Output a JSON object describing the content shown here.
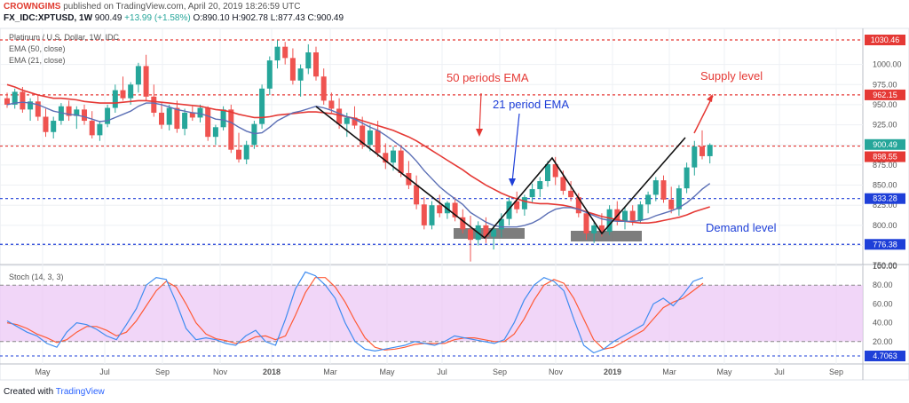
{
  "header": {
    "brand": "CROWNGIMS",
    "published": "published on TradingView.com, April 20, 2019 18:26:59 UTC",
    "symbol": "FX_IDC:XPTUSD, 1W",
    "last": "900.49",
    "change": "+13.99 (+1.58%)",
    "ohlc": "O:890.10 H:902.78 L:877.43 C:900.49"
  },
  "legend": {
    "title": "Platinum / U.S. Dollar, 1W, IDC",
    "ema50": "EMA (50, close)",
    "ema21": "EMA (21, close)",
    "stoch": "Stoch (14, 3, 3)"
  },
  "annotations": {
    "ema50_label": "50 periods EMA",
    "ema21_label": "21 period EMA",
    "supply_label": "Supply level",
    "demand_label": "Demand level"
  },
  "footer": {
    "created_with": "Created with",
    "tv": "TradingView"
  },
  "colors": {
    "up": "#26a69a",
    "down": "#ef5350",
    "ema50": "#e53935",
    "ema21": "#5b6fb5",
    "support": "#1e3fd8",
    "resistance": "#e53935",
    "stoch_k": "#3f8cf0",
    "stoch_d": "#ff5a36",
    "stoch_band": "#ecc8f5"
  },
  "chart_data": {
    "type": "candlestick",
    "price_axis_ticks": [
      750,
      775,
      800,
      825,
      850,
      875,
      900,
      925,
      950,
      975,
      1000
    ],
    "time_ticks": [
      "May",
      "Jul",
      "Sep",
      "Nov",
      "2018",
      "Mar",
      "May",
      "Jul",
      "Sep",
      "Nov",
      "2019",
      "Mar",
      "May",
      "Jul",
      "Sep"
    ],
    "levels": [
      {
        "value": 1030.46,
        "label": "1030.46",
        "color": "#e53935"
      },
      {
        "value": 962.15,
        "label": "962.15",
        "color": "#e53935"
      },
      {
        "value": 900.49,
        "label": "900.49",
        "color": "#26a69a",
        "dashed": false
      },
      {
        "value": 898.55,
        "label": "898.55",
        "color": "#e53935"
      },
      {
        "value": 833.28,
        "label": "833.28",
        "color": "#1e3fd8"
      },
      {
        "value": 776.38,
        "label": "776.38",
        "color": "#1e3fd8"
      }
    ],
    "candles": [
      [
        958,
        965,
        946,
        950
      ],
      [
        950,
        970,
        945,
        966
      ],
      [
        966,
        972,
        940,
        944
      ],
      [
        944,
        958,
        930,
        954
      ],
      [
        954,
        962,
        930,
        935
      ],
      [
        935,
        945,
        910,
        916
      ],
      [
        916,
        935,
        908,
        930
      ],
      [
        930,
        952,
        925,
        948
      ],
      [
        948,
        955,
        930,
        936
      ],
      [
        936,
        948,
        920,
        944
      ],
      [
        944,
        950,
        925,
        930
      ],
      [
        930,
        942,
        908,
        912
      ],
      [
        912,
        930,
        905,
        926
      ],
      [
        926,
        950,
        922,
        946
      ],
      [
        946,
        975,
        940,
        968
      ],
      [
        968,
        985,
        955,
        958
      ],
      [
        958,
        978,
        950,
        975
      ],
      [
        975,
        1002,
        965,
        998
      ],
      [
        998,
        1012,
        955,
        960
      ],
      [
        960,
        975,
        935,
        940
      ],
      [
        940,
        952,
        920,
        925
      ],
      [
        925,
        950,
        918,
        946
      ],
      [
        946,
        955,
        915,
        920
      ],
      [
        920,
        945,
        912,
        940
      ],
      [
        940,
        948,
        930,
        934
      ],
      [
        934,
        950,
        928,
        946
      ],
      [
        946,
        948,
        905,
        910
      ],
      [
        910,
        925,
        900,
        922
      ],
      [
        922,
        948,
        918,
        944
      ],
      [
        944,
        950,
        890,
        894
      ],
      [
        894,
        915,
        878,
        882
      ],
      [
        882,
        905,
        876,
        900
      ],
      [
        900,
        930,
        895,
        926
      ],
      [
        926,
        975,
        920,
        970
      ],
      [
        970,
        1010,
        962,
        1005
      ],
      [
        1005,
        1030,
        995,
        1022
      ],
      [
        1022,
        1028,
        1000,
        1008
      ],
      [
        1008,
        1020,
        975,
        980
      ],
      [
        980,
        1000,
        960,
        995
      ],
      [
        995,
        1025,
        988,
        1015
      ],
      [
        1015,
        1022,
        980,
        985
      ],
      [
        985,
        995,
        950,
        955
      ],
      [
        955,
        965,
        940,
        945
      ],
      [
        945,
        958,
        920,
        926
      ],
      [
        926,
        940,
        910,
        934
      ],
      [
        934,
        948,
        920,
        924
      ],
      [
        924,
        935,
        895,
        900
      ],
      [
        900,
        925,
        892,
        918
      ],
      [
        918,
        930,
        885,
        890
      ],
      [
        890,
        902,
        870,
        878
      ],
      [
        878,
        898,
        868,
        893
      ],
      [
        893,
        900,
        860,
        865
      ],
      [
        865,
        880,
        845,
        850
      ],
      [
        850,
        862,
        820,
        826
      ],
      [
        826,
        835,
        795,
        800
      ],
      [
        800,
        830,
        795,
        825
      ],
      [
        825,
        838,
        810,
        815
      ],
      [
        815,
        830,
        808,
        828
      ],
      [
        828,
        835,
        805,
        810
      ],
      [
        810,
        820,
        790,
        795
      ],
      [
        795,
        812,
        755,
        782
      ],
      [
        782,
        805,
        775,
        800
      ],
      [
        800,
        810,
        778,
        786
      ],
      [
        786,
        800,
        770,
        795
      ],
      [
        795,
        815,
        785,
        808
      ],
      [
        808,
        835,
        800,
        830
      ],
      [
        830,
        842,
        815,
        820
      ],
      [
        820,
        838,
        812,
        835
      ],
      [
        835,
        852,
        828,
        845
      ],
      [
        845,
        860,
        835,
        855
      ],
      [
        855,
        880,
        848,
        876
      ],
      [
        876,
        885,
        850,
        860
      ],
      [
        860,
        868,
        838,
        843
      ],
      [
        843,
        855,
        830,
        835
      ],
      [
        835,
        840,
        810,
        815
      ],
      [
        815,
        818,
        782,
        790
      ],
      [
        790,
        805,
        778,
        800
      ],
      [
        800,
        815,
        786,
        792
      ],
      [
        792,
        825,
        788,
        820
      ],
      [
        820,
        830,
        800,
        805
      ],
      [
        805,
        822,
        795,
        818
      ],
      [
        818,
        825,
        800,
        806
      ],
      [
        806,
        830,
        802,
        826
      ],
      [
        826,
        842,
        815,
        838
      ],
      [
        838,
        860,
        830,
        856
      ],
      [
        856,
        862,
        828,
        832
      ],
      [
        832,
        848,
        815,
        820
      ],
      [
        820,
        850,
        812,
        846
      ],
      [
        846,
        878,
        840,
        872
      ],
      [
        872,
        905,
        862,
        898
      ],
      [
        898,
        918,
        882,
        886
      ],
      [
        886,
        902,
        877,
        900
      ]
    ],
    "ema50": [
      975,
      972,
      968,
      965,
      962,
      960,
      958,
      958,
      957,
      956,
      954,
      953,
      952,
      952,
      952,
      953,
      954,
      955,
      955,
      954,
      953,
      952,
      951,
      950,
      949,
      948,
      946,
      944,
      943,
      941,
      938,
      936,
      934,
      934,
      935,
      937,
      938,
      939,
      940,
      941,
      941,
      940,
      939,
      937,
      935,
      933,
      930,
      927,
      924,
      921,
      918,
      914,
      910,
      905,
      899,
      893,
      887,
      881,
      875,
      869,
      862,
      856,
      850,
      845,
      840,
      836,
      833,
      830,
      828,
      827,
      827,
      826,
      825,
      823,
      820,
      817,
      814,
      811,
      809,
      807,
      805,
      804,
      803,
      803,
      804,
      806,
      808,
      810,
      813,
      817,
      820,
      823
    ],
    "ema21": [
      950,
      952,
      953,
      952,
      950,
      946,
      942,
      940,
      938,
      937,
      935,
      932,
      929,
      930,
      934,
      938,
      942,
      948,
      952,
      952,
      950,
      947,
      944,
      942,
      940,
      939,
      936,
      932,
      931,
      928,
      922,
      917,
      914,
      915,
      922,
      930,
      935,
      940,
      942,
      945,
      948,
      946,
      943,
      939,
      935,
      932,
      927,
      922,
      918,
      912,
      905,
      898,
      890,
      880,
      868,
      858,
      848,
      840,
      833,
      826,
      816,
      810,
      804,
      800,
      798,
      798,
      798,
      800,
      803,
      808,
      815,
      820,
      822,
      822,
      820,
      816,
      812,
      808,
      806,
      805,
      805,
      805,
      806,
      808,
      812,
      815,
      818,
      822,
      828,
      836,
      845,
      852
    ],
    "stoch_k": [
      42,
      36,
      30,
      26,
      18,
      14,
      30,
      40,
      38,
      33,
      26,
      22,
      38,
      55,
      80,
      88,
      86,
      62,
      34,
      22,
      24,
      22,
      18,
      16,
      26,
      32,
      20,
      16,
      44,
      76,
      94,
      90,
      80,
      66,
      40,
      20,
      12,
      10,
      12,
      14,
      16,
      20,
      18,
      16,
      20,
      26,
      24,
      22,
      20,
      18,
      22,
      40,
      64,
      80,
      88,
      84,
      74,
      44,
      16,
      8,
      12,
      20,
      26,
      32,
      38,
      60,
      66,
      58,
      70,
      84,
      88
    ],
    "stoch_d": [
      40,
      38,
      34,
      28,
      24,
      19,
      22,
      30,
      36,
      36,
      32,
      26,
      30,
      42,
      58,
      74,
      84,
      78,
      60,
      40,
      28,
      23,
      21,
      18,
      20,
      25,
      26,
      22,
      26,
      48,
      72,
      88,
      88,
      78,
      62,
      42,
      24,
      14,
      11,
      12,
      14,
      17,
      18,
      18,
      18,
      22,
      24,
      24,
      22,
      20,
      20,
      28,
      44,
      64,
      80,
      86,
      82,
      66,
      44,
      22,
      12,
      14,
      20,
      26,
      32,
      44,
      56,
      62,
      66,
      74,
      82
    ]
  }
}
